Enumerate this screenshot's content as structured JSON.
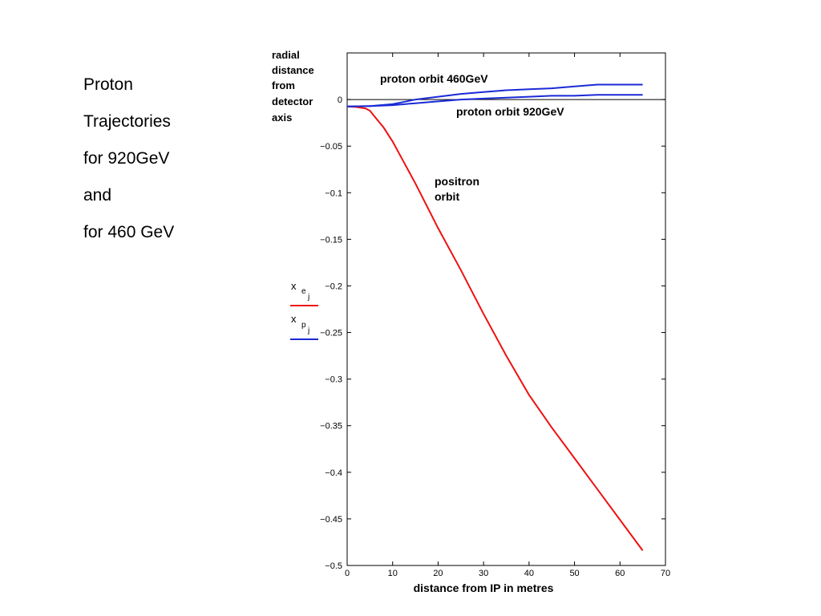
{
  "title_lines": [
    "Proton",
    "Trajectories",
    "for 920GeV",
    "and",
    "for 460 GeV"
  ],
  "chart_data": {
    "type": "line",
    "ylabel_lines": [
      "radial",
      "distance",
      "from",
      "detector",
      "axis"
    ],
    "xlabel": "distance from IP in metres",
    "xlim": [
      0,
      70
    ],
    "ylim": [
      -0.5,
      0.05
    ],
    "x_ticks": [
      0,
      10,
      20,
      30,
      40,
      50,
      60,
      70
    ],
    "y_ticks": [
      0,
      -0.05,
      -0.1,
      -0.15,
      -0.2,
      -0.25,
      -0.3,
      -0.35,
      -0.4,
      -0.45,
      -0.5
    ],
    "y_tick_labels": [
      "0",
      "−0.05",
      "−0.1",
      "−0.15",
      "−0.2",
      "−0.25",
      "−0.3",
      "−0.35",
      "−0.4",
      "−0.45",
      "−0.5"
    ],
    "zero_line": true,
    "grid": false,
    "annotations": [
      "proton orbit 460GeV",
      "proton orbit 920GeV",
      "positron",
      "orbit"
    ],
    "legend": [
      {
        "symbol": "x",
        "sub": "e",
        "subsub": "j",
        "color": "#ee1111"
      },
      {
        "symbol": "x",
        "sub": "p",
        "subsub": "j",
        "color": "#1a2ad6"
      }
    ],
    "series": [
      {
        "color": "#ee1111",
        "x": [
          0,
          2,
          4,
          5,
          6,
          8,
          10,
          15,
          20,
          25,
          30,
          35,
          40,
          45,
          50,
          55,
          60,
          65
        ],
        "y": [
          -0.0075,
          -0.008,
          -0.0095,
          -0.012,
          -0.018,
          -0.03,
          -0.045,
          -0.09,
          -0.138,
          -0.183,
          -0.23,
          -0.275,
          -0.317,
          -0.352,
          -0.385,
          -0.418,
          -0.451,
          -0.484
        ]
      },
      {
        "color": "#1a2ad6",
        "x": [
          0,
          5,
          10,
          15,
          20,
          25,
          30,
          35,
          40,
          45,
          50,
          55,
          60,
          65
        ],
        "y": [
          -0.0075,
          -0.007,
          -0.006,
          -0.004,
          -0.002,
          0.0,
          0.001,
          0.002,
          0.003,
          0.004,
          0.004,
          0.005,
          0.005,
          0.005
        ]
      },
      {
        "color": "#1a2ad6",
        "x": [
          0,
          5,
          10,
          15,
          20,
          25,
          30,
          35,
          40,
          45,
          50,
          55,
          60,
          65
        ],
        "y": [
          -0.0075,
          -0.007,
          -0.005,
          0.0,
          0.003,
          0.006,
          0.008,
          0.01,
          0.011,
          0.012,
          0.014,
          0.016,
          0.016,
          0.016
        ]
      }
    ]
  }
}
